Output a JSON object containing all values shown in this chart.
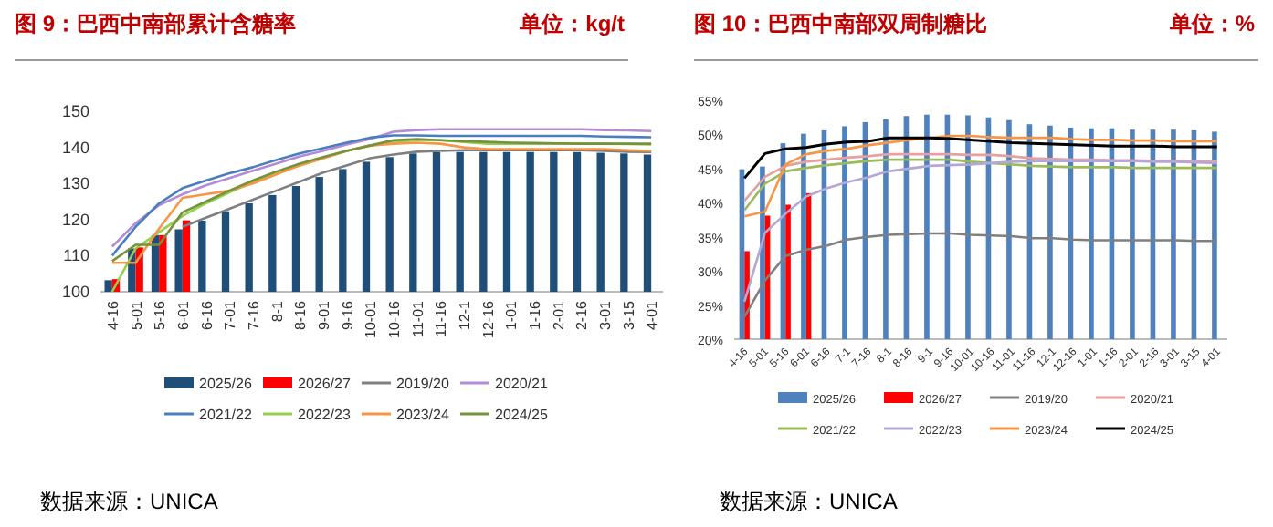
{
  "chart_data": [
    {
      "type": "bar",
      "title": "图 9：巴西中南部累计含糖率",
      "subtitle": "单位：kg/t",
      "annotations": [
        "数据来源：UNICA"
      ],
      "categories": [
        "4-16",
        "5-01",
        "5-16",
        "6-01",
        "6-16",
        "7-01",
        "7-16",
        "8-1",
        "8-16",
        "9-01",
        "9-16",
        "10-01",
        "10-16",
        "11-01",
        "11-16",
        "12-1",
        "12-16",
        "1-01",
        "1-16",
        "2-01",
        "2-16",
        "3-01",
        "3-15",
        "4-01"
      ],
      "ylim": [
        100,
        150
      ],
      "yticks": [
        100,
        110,
        120,
        130,
        140,
        150
      ],
      "grid": false,
      "legend": "bottom",
      "series": [
        {
          "name": "2025/26",
          "color": "#1f4e79",
          "values": [
            103.2,
            112,
            115.7,
            117.3,
            119.7,
            122.3,
            124.5,
            126.8,
            129.3,
            131.8,
            134,
            136,
            137.3,
            138.3,
            138.7,
            138.7,
            138.7,
            138.7,
            138.7,
            138.7,
            138.7,
            138.5,
            138.3,
            138
          ]
        },
        {
          "name": "2026/27",
          "color": "#ff0000",
          "values": [
            103.5,
            112.3,
            115.7,
            119.8,
            null,
            null,
            null,
            null,
            null,
            null,
            null,
            null,
            null,
            null,
            null,
            null,
            null,
            null,
            null,
            null,
            null,
            null,
            null,
            null
          ]
        },
        {
          "name": "2019/20",
          "type": "line",
          "color": "#7f7f7f",
          "values": [
            null,
            null,
            null,
            118,
            120.5,
            123,
            125.5,
            128,
            130.5,
            133,
            135,
            137,
            138,
            138.8,
            139,
            139.2,
            139.2,
            139.2,
            139.2,
            139.2,
            139.2,
            139,
            138.8,
            138.7
          ]
        },
        {
          "name": "2020/21",
          "type": "line",
          "color": "#b48bd6",
          "values": [
            112.5,
            119,
            124,
            127,
            129.5,
            131.5,
            133.5,
            135.5,
            137.5,
            139,
            140.8,
            142.3,
            144.3,
            144.8,
            145,
            145,
            145,
            145,
            145,
            145,
            145,
            144.8,
            144.7,
            144.5
          ]
        },
        {
          "name": "2021/22",
          "type": "line",
          "color": "#4a7ebf",
          "values": [
            110,
            118,
            124.5,
            128.7,
            130.8,
            132.8,
            134.5,
            136.5,
            138.3,
            139.8,
            141.3,
            142.7,
            143.3,
            143.3,
            143.2,
            143.2,
            143.2,
            143.2,
            143.2,
            143.2,
            143.2,
            143,
            142.9,
            142.8
          ]
        },
        {
          "name": "2022/23",
          "type": "line",
          "color": "#92d050",
          "values": [
            100,
            112,
            116.5,
            121,
            124.5,
            127.5,
            130.5,
            133,
            135,
            137,
            139,
            140.5,
            141.5,
            142,
            142,
            141.5,
            141,
            141,
            141,
            141,
            141,
            141,
            140.9,
            140.8
          ]
        },
        {
          "name": "2023/24",
          "type": "line",
          "color": "#f79646",
          "values": [
            108,
            108,
            117.5,
            126,
            127,
            128,
            130,
            132.5,
            135,
            137,
            139,
            140.5,
            141,
            141.3,
            141,
            140,
            139.5,
            139.5,
            139.5,
            139.5,
            139.5,
            139.5,
            139.2,
            139
          ]
        },
        {
          "name": "2024/25",
          "type": "line",
          "color": "#76923c",
          "values": [
            108.5,
            113,
            113,
            122,
            125,
            128,
            130.8,
            133.3,
            135.5,
            137.3,
            139,
            140.5,
            142,
            142.3,
            142,
            141.7,
            141.5,
            141.3,
            141.2,
            141.1,
            141,
            141,
            141,
            141
          ]
        }
      ]
    },
    {
      "type": "bar",
      "title": "图 10：巴西中南部双周制糖比",
      "subtitle": "单位：%",
      "annotations": [
        "数据来源：UNICA"
      ],
      "categories": [
        "4-16",
        "5-01",
        "5-16",
        "6-01",
        "6-16",
        "7-1",
        "7-16",
        "8-1",
        "8-16",
        "9-1",
        "9-16",
        "10-01",
        "10-16",
        "11-01",
        "11-16",
        "12-1",
        "12-16",
        "1-01",
        "1-16",
        "2-01",
        "2-16",
        "3-01",
        "3-15",
        "4-01"
      ],
      "ylim": [
        20,
        55
      ],
      "yticks": [
        {
          "value": 20,
          "label": "20%"
        },
        {
          "value": 25,
          "label": "25%"
        },
        {
          "value": 30,
          "label": "30%"
        },
        {
          "value": 35,
          "label": "35%"
        },
        {
          "value": 40,
          "label": "40%"
        },
        {
          "value": 45,
          "label": "45%"
        },
        {
          "value": 50,
          "label": "50%"
        },
        {
          "value": 55,
          "label": "55%"
        }
      ],
      "grid": false,
      "legend": "bottom",
      "series": [
        {
          "name": "2025/26",
          "color": "#4f81bd",
          "values": [
            44.9,
            45.3,
            48.7,
            50.1,
            50.6,
            51.2,
            51.8,
            52.2,
            52.7,
            52.9,
            52.9,
            52.8,
            52.5,
            52.1,
            51.5,
            51.3,
            51,
            50.9,
            50.9,
            50.7,
            50.7,
            50.7,
            50.6,
            50.4
          ]
        },
        {
          "name": "2026/27",
          "color": "#ff0000",
          "values": [
            32.9,
            38.1,
            39.7,
            41.4,
            null,
            null,
            null,
            null,
            null,
            null,
            null,
            null,
            null,
            null,
            null,
            null,
            null,
            null,
            null,
            null,
            null,
            null,
            null,
            null
          ]
        },
        {
          "name": "2019/20",
          "type": "line",
          "color": "#7f7f7f",
          "values": [
            23.3,
            28.6,
            32.2,
            33.1,
            33.7,
            34.6,
            35,
            35.3,
            35.4,
            35.5,
            35.5,
            35.3,
            35.2,
            35.1,
            34.8,
            34.8,
            34.6,
            34.5,
            34.5,
            34.5,
            34.5,
            34.5,
            34.4,
            34.4
          ]
        },
        {
          "name": "2020/21",
          "type": "line",
          "color": "#e6a0a0",
          "values": [
            40.3,
            43.8,
            45.4,
            46,
            46.3,
            46.6,
            46.8,
            47.1,
            47.1,
            47.1,
            47.1,
            47,
            47,
            46.8,
            46.5,
            46.4,
            46.3,
            46.3,
            46.2,
            46.2,
            46.1,
            46.1,
            46,
            46
          ]
        },
        {
          "name": "2021/22",
          "type": "line",
          "color": "#9bbb59",
          "values": [
            38.9,
            42.8,
            44.6,
            45.1,
            45.5,
            45.8,
            46.1,
            46.3,
            46.3,
            46.3,
            46.3,
            46,
            45.8,
            45.6,
            45.4,
            45.3,
            45.2,
            45.2,
            45.2,
            45.1,
            45.1,
            45.1,
            45.1,
            45.1
          ]
        },
        {
          "name": "2022/23",
          "type": "line",
          "color": "#b4a7d6",
          "values": [
            25.5,
            35.6,
            38.4,
            40.9,
            42.1,
            43,
            43.7,
            44.6,
            45,
            45.4,
            45.5,
            45.6,
            45.8,
            46,
            46.1,
            46.1,
            46.1,
            46.1,
            46.1,
            46.1,
            46,
            46,
            45.9,
            45.8
          ]
        },
        {
          "name": "2023/24",
          "type": "line",
          "color": "#f79646",
          "values": [
            38,
            38.7,
            45.6,
            47.1,
            47.6,
            47.9,
            48.4,
            48.8,
            49.2,
            49.5,
            49.8,
            49.8,
            49.6,
            49.5,
            49.5,
            49.5,
            49.3,
            49.2,
            49.2,
            49.1,
            49.1,
            49,
            49,
            49
          ]
        },
        {
          "name": "2024/25",
          "type": "line",
          "color": "#000000",
          "values": [
            43.6,
            47.2,
            47.9,
            48.1,
            48.6,
            48.9,
            49,
            49.5,
            49.5,
            49.5,
            49.4,
            49.2,
            49,
            48.8,
            48.7,
            48.6,
            48.5,
            48.4,
            48.3,
            48.3,
            48.3,
            48.2,
            48.2,
            48.2
          ]
        }
      ]
    }
  ]
}
